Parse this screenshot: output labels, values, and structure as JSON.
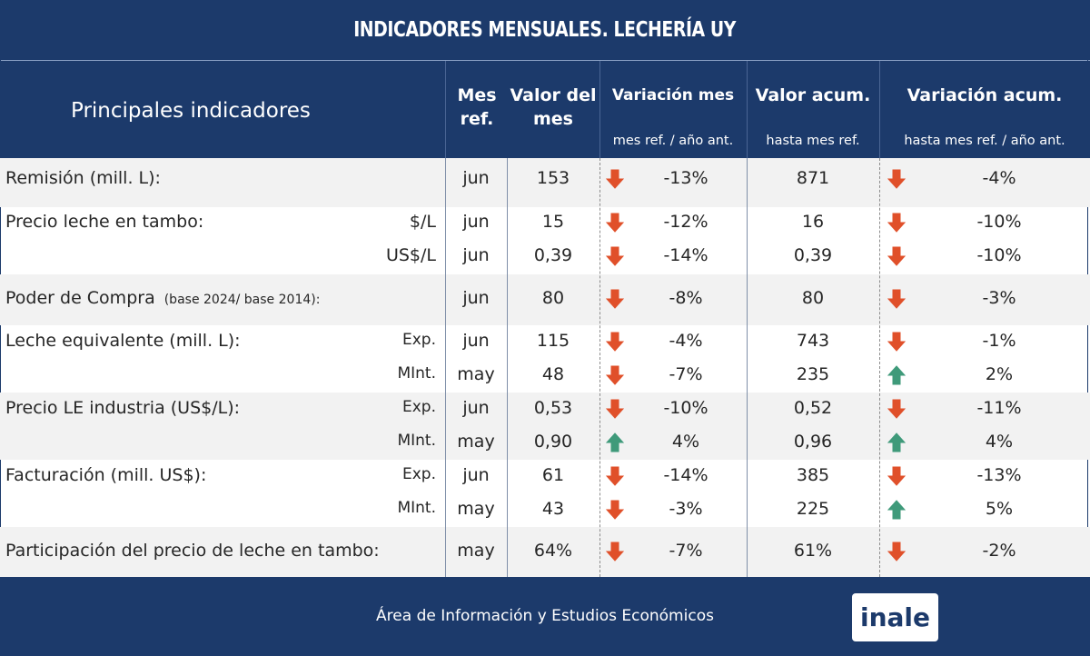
{
  "title": "INDICADORES MENSUALES. LECHERÍA UY",
  "header": {
    "main": "Principales indicadores",
    "mes_ref_1": "Mes",
    "mes_ref_2": "ref.",
    "valor_mes_1": "Valor del",
    "valor_mes_2": "mes",
    "var_mes": "Variación mes",
    "var_mes_sub": "mes ref. / año ant.",
    "valor_acum": "Valor acum.",
    "valor_acum_sub": "hasta mes ref.",
    "var_acum": "Variación acum.",
    "var_acum_sub": "hasta mes ref. / año ant."
  },
  "rows": [
    {
      "label": "Remisión (mill. L):",
      "sub": "",
      "mes": "jun",
      "valor": "153",
      "var_mes_dir": "down",
      "var_mes": "-13%",
      "acum": "871",
      "var_acum_dir": "down",
      "var_acum": "-4%"
    },
    {
      "label": "Precio leche en tambo:",
      "sub": "$/L",
      "mes": "jun",
      "valor": "15",
      "var_mes_dir": "down",
      "var_mes": "-12%",
      "acum": "16",
      "var_acum_dir": "down",
      "var_acum": "-10%"
    },
    {
      "label": "",
      "sub": "US$/L",
      "mes": "jun",
      "valor": "0,39",
      "var_mes_dir": "down",
      "var_mes": "-14%",
      "acum": "0,39",
      "var_acum_dir": "down",
      "var_acum": "-10%"
    },
    {
      "label": "Poder de Compra",
      "label_note": "(base 2024/ base 2014):",
      "sub": "",
      "mes": "jun",
      "valor": "80",
      "var_mes_dir": "down",
      "var_mes": "-8%",
      "acum": "80",
      "var_acum_dir": "down",
      "var_acum": "-3%"
    },
    {
      "label": "Leche equivalente (mill. L):",
      "sub": "Exp.",
      "mes": "jun",
      "valor": "115",
      "var_mes_dir": "down",
      "var_mes": "-4%",
      "acum": "743",
      "var_acum_dir": "down",
      "var_acum": "-1%"
    },
    {
      "label": "",
      "sub": "MInt.",
      "mes": "may",
      "valor": "48",
      "var_mes_dir": "down",
      "var_mes": "-7%",
      "acum": "235",
      "var_acum_dir": "up",
      "var_acum": "2%"
    },
    {
      "label": "Precio LE industria (US$/L):",
      "sub": "Exp.",
      "mes": "jun",
      "valor": "0,53",
      "var_mes_dir": "down",
      "var_mes": "-10%",
      "acum": "0,52",
      "var_acum_dir": "down",
      "var_acum": "-11%"
    },
    {
      "label": "",
      "sub": "MInt.",
      "mes": "may",
      "valor": "0,90",
      "var_mes_dir": "up",
      "var_mes": "4%",
      "acum": "0,96",
      "var_acum_dir": "up",
      "var_acum": "4%"
    },
    {
      "label": "Facturación (mill. US$):",
      "sub": "Exp.",
      "mes": "jun",
      "valor": "61",
      "var_mes_dir": "down",
      "var_mes": "-14%",
      "acum": "385",
      "var_acum_dir": "down",
      "var_acum": "-13%"
    },
    {
      "label": "",
      "sub": "MInt.",
      "mes": "may",
      "valor": "43",
      "var_mes_dir": "down",
      "var_mes": "-3%",
      "acum": "225",
      "var_acum_dir": "up",
      "var_acum": "5%"
    },
    {
      "label": "Participación del precio de leche en tambo:",
      "sub": "",
      "mes": "may",
      "valor": "64%",
      "var_mes_dir": "down",
      "var_mes": "-7%",
      "acum": "61%",
      "var_acum_dir": "down",
      "var_acum": "-2%"
    }
  ],
  "colors": {
    "navy": "#1c3a6b",
    "arrow_down": "#e0502a",
    "arrow_up": "#3f9a7a"
  },
  "footer": {
    "text": "Área de Información y Estudios Económicos",
    "logo": "inale"
  }
}
